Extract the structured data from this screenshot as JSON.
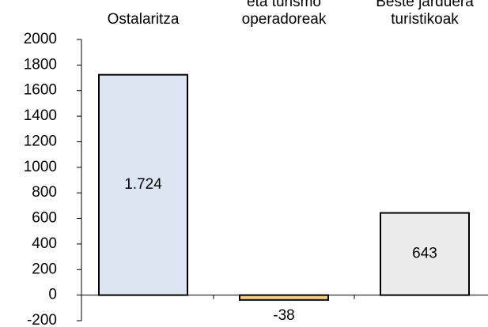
{
  "chart_data": {
    "type": "bar",
    "categories": [
      [
        "Ostalaritza"
      ],
      [
        "eta turismo",
        "operadoreak"
      ],
      [
        "Beste jarduera",
        "turistikoak"
      ]
    ],
    "values": [
      1724,
      -38,
      643
    ],
    "value_labels": [
      "1.724",
      "-38",
      "643"
    ],
    "colors": [
      "#dce6f2",
      "#f8cc8e",
      "#ececec"
    ],
    "ylim": [
      -200,
      2000
    ],
    "yticks": [
      -200,
      0,
      200,
      400,
      600,
      800,
      1000,
      1200,
      1400,
      1600,
      1800,
      2000
    ]
  }
}
